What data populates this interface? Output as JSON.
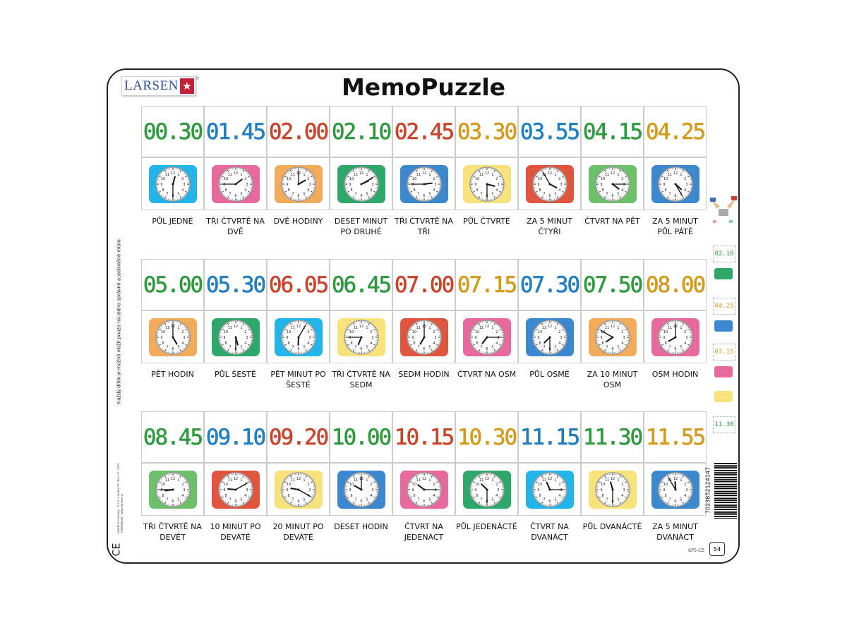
{
  "brand": {
    "logo": "LARSEN",
    "registered": "®"
  },
  "title": "MemoPuzzle",
  "side_instruction": "Každý dílek je možné vložit pouze na jedno správné a jedinečné místo.",
  "made_in": "Made in Norway · © LA, Larsen AS, Box 47, 4401 Flekkefjord · www.larsen.no",
  "ce_mark": "CE",
  "barcode_number": "7023852124147",
  "product_code": "GP5-CZ",
  "piece_count": "54",
  "colors": {
    "green": "#2e9a3e",
    "blue": "#1f7fc0",
    "red": "#c8442a",
    "gold": "#d49a1a",
    "bg_cyan": "#22b5ea",
    "bg_pink": "#e7699e",
    "bg_orange": "#f1ab5b",
    "bg_green": "#2ea86a",
    "bg_blue": "#3b88cf",
    "bg_yellow": "#f7e27c",
    "bg_red": "#e0553d",
    "bg_lightgreen": "#6cc06a"
  },
  "examples": [
    "02.10",
    "04.25",
    "07.15",
    "11.30"
  ],
  "rows": [
    [
      {
        "time": "00.30",
        "digit_color": "green",
        "clock_color": "bg_cyan",
        "label": "PŮL JEDNÉ"
      },
      {
        "time": "01.45",
        "digit_color": "blue",
        "clock_color": "bg_pink",
        "label": "TŘI ČTVRTĚ NA DVĚ"
      },
      {
        "time": "02.00",
        "digit_color": "red",
        "clock_color": "bg_orange",
        "label": "DVĚ HODINY"
      },
      {
        "time": "02.10",
        "digit_color": "green",
        "clock_color": "bg_green",
        "label": "DESET MINUT PO DRUHÉ"
      },
      {
        "time": "02.45",
        "digit_color": "red",
        "clock_color": "bg_blue",
        "label": "TŘI ČTVRTĚ NA TŘI"
      },
      {
        "time": "03.30",
        "digit_color": "gold",
        "clock_color": "bg_yellow",
        "label": "PŮL ČTVRTÉ"
      },
      {
        "time": "03.55",
        "digit_color": "blue",
        "clock_color": "bg_red",
        "label": "ZA 5 MINUT ČTYŘI"
      },
      {
        "time": "04.15",
        "digit_color": "green",
        "clock_color": "bg_lightgreen",
        "label": "ČTVRT NA PĚT"
      },
      {
        "time": "04.25",
        "digit_color": "gold",
        "clock_color": "bg_blue",
        "label": "ZA 5 MINUT PŮL PÁTÉ"
      }
    ],
    [
      {
        "time": "05.00",
        "digit_color": "green",
        "clock_color": "bg_orange",
        "label": "PĚT HODIN"
      },
      {
        "time": "05.30",
        "digit_color": "blue",
        "clock_color": "bg_green",
        "label": "PŮL ŠESTÉ"
      },
      {
        "time": "06.05",
        "digit_color": "red",
        "clock_color": "bg_cyan",
        "label": "PĚT MINUT PO ŠESTÉ"
      },
      {
        "time": "06.45",
        "digit_color": "green",
        "clock_color": "bg_yellow",
        "label": "TŘI ČTVRTĚ NA SEDM"
      },
      {
        "time": "07.00",
        "digit_color": "red",
        "clock_color": "bg_red",
        "label": "SEDM HODIN"
      },
      {
        "time": "07.15",
        "digit_color": "gold",
        "clock_color": "bg_pink",
        "label": "ČTVRT NA OSM"
      },
      {
        "time": "07.30",
        "digit_color": "blue",
        "clock_color": "bg_blue",
        "label": "PŮL OSMÉ"
      },
      {
        "time": "07.50",
        "digit_color": "green",
        "clock_color": "bg_orange",
        "label": "ZA 10 MINUT OSM"
      },
      {
        "time": "08.00",
        "digit_color": "gold",
        "clock_color": "bg_pink",
        "label": "OSM HODIN"
      }
    ],
    [
      {
        "time": "08.45",
        "digit_color": "green",
        "clock_color": "bg_lightgreen",
        "label": "TŘI ČTVRTĚ NA DEVĚT"
      },
      {
        "time": "09.10",
        "digit_color": "blue",
        "clock_color": "bg_red",
        "label": "10 MINUT PO DEVÁTÉ"
      },
      {
        "time": "09.20",
        "digit_color": "red",
        "clock_color": "bg_yellow",
        "label": "20 MINUT PO DEVÁTÉ"
      },
      {
        "time": "10.00",
        "digit_color": "green",
        "clock_color": "bg_blue",
        "label": "DESET HODIN"
      },
      {
        "time": "10.15",
        "digit_color": "red",
        "clock_color": "bg_pink",
        "label": "ČTVRT NA JEDENÁCT"
      },
      {
        "time": "10.30",
        "digit_color": "gold",
        "clock_color": "bg_green",
        "label": "PŮL JEDENÁCTÉ"
      },
      {
        "time": "11.15",
        "digit_color": "blue",
        "clock_color": "bg_cyan",
        "label": "ČTVRT NA DVANÁCT"
      },
      {
        "time": "11.30",
        "digit_color": "green",
        "clock_color": "bg_yellow",
        "label": "PŮL DVANÁCTÉ"
      },
      {
        "time": "11.55",
        "digit_color": "gold",
        "clock_color": "bg_blue",
        "label": "ZA 5 MINUT DVANÁCT"
      }
    ]
  ]
}
